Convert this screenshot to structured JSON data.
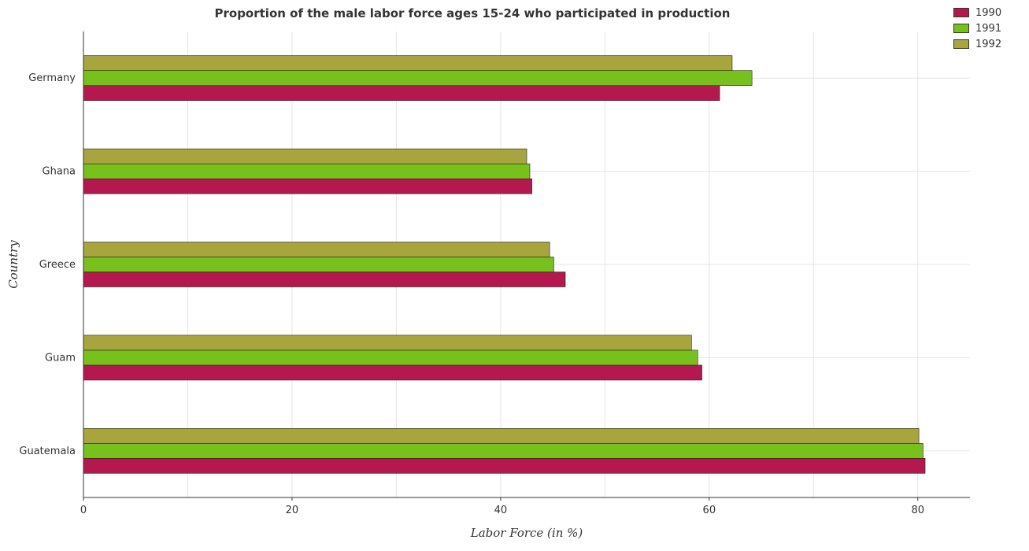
{
  "chart_data": {
    "type": "bar",
    "orientation": "horizontal",
    "title": "Proportion of the male labor force ages 15-24 who participated in production",
    "xlabel": "Labor Force (in %)",
    "ylabel": "Country",
    "xlim": [
      0,
      85
    ],
    "xticks": [
      0,
      20,
      40,
      60,
      80
    ],
    "categories": [
      "Germany",
      "Ghana",
      "Greece",
      "Guam",
      "Guatemala"
    ],
    "series": [
      {
        "name": "1990",
        "color": "#b5184f",
        "values": [
          61.0,
          43.0,
          46.2,
          59.3,
          80.7
        ]
      },
      {
        "name": "1991",
        "color": "#78c11d",
        "values": [
          64.1,
          42.8,
          45.1,
          58.9,
          80.5
        ]
      },
      {
        "name": "1992",
        "color": "#a8a43e",
        "values": [
          62.2,
          42.5,
          44.7,
          58.3,
          80.1
        ]
      }
    ],
    "legend_position": "top-right",
    "grid": true
  }
}
